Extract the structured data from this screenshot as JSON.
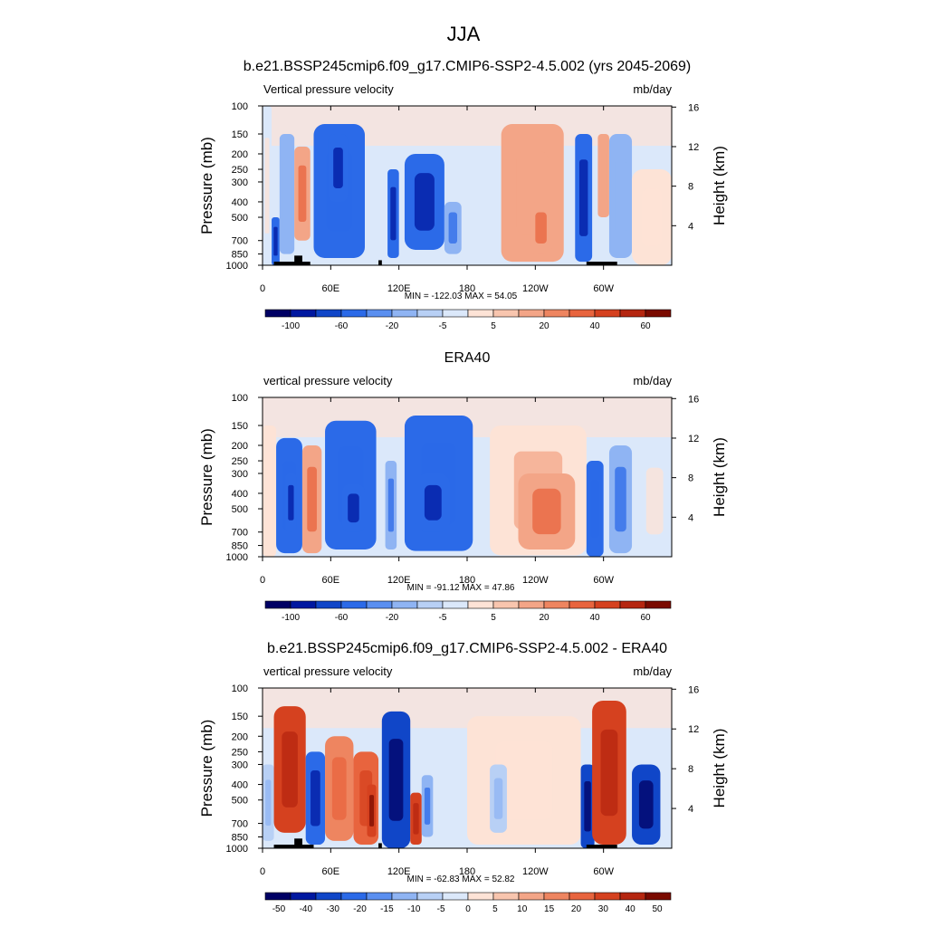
{
  "figure": {
    "title": "JJA"
  },
  "colors": {
    "panel_scale": [
      "#000064",
      "#0018a0",
      "#1046c8",
      "#2b6ae8",
      "#5a8ff0",
      "#8fb4f3",
      "#b8d0f5",
      "#dbe8fa",
      "#fde3d6",
      "#f8c5ae",
      "#f3a587",
      "#ee8560",
      "#e8643e",
      "#d5411f",
      "#b52610",
      "#7a0a00"
    ],
    "land": "#000000"
  },
  "chart_data": [
    {
      "type": "heatmap",
      "title": "b.e21.BSSP245cmip6.f09_g17.CMIP6-SSP2-4.5.002 (yrs 2045-2069)",
      "left_label": "Vertical pressure velocity",
      "right_label": "mb/day",
      "ylabel": "Pressure (mb)",
      "ylabel_right": "Height (km)",
      "x_ticks": [
        "0",
        "60E",
        "120E",
        "180",
        "120W",
        "60W"
      ],
      "y_ticks": [
        "100",
        "150",
        "200",
        "250",
        "300",
        "400",
        "500",
        "700",
        "850",
        "1000"
      ],
      "y_ticks_right": [
        "16",
        "12",
        "8",
        "4"
      ],
      "stats": "MIN = -122.03  MAX =  54.05",
      "colorbar_labels": [
        "-100",
        "-60",
        "-20",
        "-5",
        "5",
        "20",
        "40",
        "60"
      ],
      "ylim": [
        1000,
        100
      ],
      "xlim": [
        0,
        360
      ],
      "regions": [
        {
          "lon": [
            0,
            8
          ],
          "p": [
            100,
            1000
          ],
          "v": 4
        },
        {
          "lon": [
            8,
            15
          ],
          "p": [
            500,
            1000
          ],
          "v": -40
        },
        {
          "lon": [
            15,
            28
          ],
          "p": [
            150,
            850
          ],
          "v": -10
        },
        {
          "lon": [
            28,
            42
          ],
          "p": [
            180,
            700
          ],
          "v": 25
        },
        {
          "lon": [
            45,
            90
          ],
          "p": [
            130,
            900
          ],
          "v": -25
        },
        {
          "lon": [
            58,
            75
          ],
          "p": [
            150,
            400
          ],
          "v": -50
        },
        {
          "lon": [
            110,
            120
          ],
          "p": [
            250,
            900
          ],
          "v": -60
        },
        {
          "lon": [
            125,
            160
          ],
          "p": [
            200,
            800
          ],
          "v": -40
        },
        {
          "lon": [
            160,
            175
          ],
          "p": [
            400,
            850
          ],
          "v": -15
        },
        {
          "lon": [
            210,
            265
          ],
          "p": [
            130,
            950
          ],
          "v": 20
        },
        {
          "lon": [
            235,
            255
          ],
          "p": [
            400,
            850
          ],
          "v": 35
        },
        {
          "lon": [
            275,
            290
          ],
          "p": [
            150,
            950
          ],
          "v": -50
        },
        {
          "lon": [
            295,
            305
          ],
          "p": [
            150,
            500
          ],
          "v": 20
        },
        {
          "lon": [
            305,
            325
          ],
          "p": [
            150,
            900
          ],
          "v": -12
        },
        {
          "lon": [
            325,
            360
          ],
          "p": [
            250,
            1000
          ],
          "v": 8
        }
      ],
      "land": [
        {
          "lon": [
            10,
            42
          ],
          "p": [
            950,
            1000
          ]
        },
        {
          "lon": [
            28,
            35
          ],
          "p": [
            870,
            1000
          ]
        },
        {
          "lon": [
            102,
            105
          ],
          "p": [
            930,
            1000
          ]
        },
        {
          "lon": [
            285,
            312
          ],
          "p": [
            950,
            1000
          ]
        }
      ]
    },
    {
      "type": "heatmap",
      "title": "ERA40",
      "left_label": "vertical pressure velocity",
      "right_label": "mb/day",
      "ylabel": "Pressure (mb)",
      "ylabel_right": "Height (km)",
      "x_ticks": [
        "0",
        "60E",
        "120E",
        "180",
        "120W",
        "60W"
      ],
      "y_ticks": [
        "100",
        "150",
        "200",
        "250",
        "300",
        "400",
        "500",
        "700",
        "850",
        "1000"
      ],
      "y_ticks_right": [
        "16",
        "12",
        "8",
        "4"
      ],
      "stats": "MIN = -91.12  MAX =  47.86",
      "colorbar_labels": [
        "-100",
        "-60",
        "-20",
        "-5",
        "5",
        "20",
        "40",
        "60"
      ],
      "ylim": [
        1000,
        100
      ],
      "xlim": [
        0,
        360
      ],
      "regions": [
        {
          "lon": [
            0,
            12
          ],
          "p": [
            150,
            1000
          ],
          "v": 8
        },
        {
          "lon": [
            12,
            35
          ],
          "p": [
            180,
            950
          ],
          "v": -25
        },
        {
          "lon": [
            20,
            30
          ],
          "p": [
            300,
            700
          ],
          "v": -50
        },
        {
          "lon": [
            35,
            52
          ],
          "p": [
            200,
            950
          ],
          "v": 35
        },
        {
          "lon": [
            55,
            100
          ],
          "p": [
            140,
            900
          ],
          "v": -30
        },
        {
          "lon": [
            70,
            90
          ],
          "p": [
            350,
            700
          ],
          "v": -45
        },
        {
          "lon": [
            108,
            118
          ],
          "p": [
            250,
            900
          ],
          "v": -15
        },
        {
          "lon": [
            125,
            185
          ],
          "p": [
            130,
            920
          ],
          "v": -35
        },
        {
          "lon": [
            135,
            165
          ],
          "p": [
            300,
            700
          ],
          "v": -55
        },
        {
          "lon": [
            200,
            285
          ],
          "p": [
            150,
            980
          ],
          "v": 15
        },
        {
          "lon": [
            225,
            275
          ],
          "p": [
            300,
            900
          ],
          "v": 25
        },
        {
          "lon": [
            285,
            300
          ],
          "p": [
            250,
            1000
          ],
          "v": -35
        },
        {
          "lon": [
            305,
            325
          ],
          "p": [
            200,
            950
          ],
          "v": -15
        },
        {
          "lon": [
            330,
            360
          ],
          "p": [
            200,
            1000
          ],
          "v": 4
        }
      ],
      "land": []
    },
    {
      "type": "heatmap",
      "title": "b.e21.BSSP245cmip6.f09_g17.CMIP6-SSP2-4.5.002 - ERA40",
      "left_label": "vertical pressure velocity",
      "right_label": "mb/day",
      "ylabel": "Pressure (mb)",
      "ylabel_right": "Height (km)",
      "x_ticks": [
        "0",
        "60E",
        "120E",
        "180",
        "120W",
        "60W"
      ],
      "y_ticks": [
        "100",
        "150",
        "200",
        "250",
        "300",
        "400",
        "500",
        "700",
        "850",
        "1000"
      ],
      "y_ticks_right": [
        "16",
        "12",
        "8",
        "4"
      ],
      "stats": "MIN = -62.83  MAX =  52.82",
      "colorbar_labels": [
        "-50",
        "-40",
        "-30",
        "-20",
        "-15",
        "-10",
        "-5",
        "0",
        "5",
        "10",
        "15",
        "20",
        "30",
        "40",
        "50"
      ],
      "ylim": [
        1000,
        100
      ],
      "xlim": [
        0,
        360
      ],
      "regions": [
        {
          "lon": [
            0,
            10
          ],
          "p": [
            300,
            900
          ],
          "v": -8
        },
        {
          "lon": [
            10,
            38
          ],
          "p": [
            130,
            800
          ],
          "v": 30
        },
        {
          "lon": [
            38,
            55
          ],
          "p": [
            250,
            950
          ],
          "v": -30
        },
        {
          "lon": [
            55,
            80
          ],
          "p": [
            200,
            900
          ],
          "v": 15
        },
        {
          "lon": [
            80,
            102
          ],
          "p": [
            250,
            950
          ],
          "v": 20
        },
        {
          "lon": [
            92,
            100
          ],
          "p": [
            400,
            850
          ],
          "v": 35
        },
        {
          "lon": [
            105,
            130
          ],
          "p": [
            140,
            1000
          ],
          "v": -35
        },
        {
          "lon": [
            130,
            140
          ],
          "p": [
            450,
            950
          ],
          "v": 30
        },
        {
          "lon": [
            140,
            150
          ],
          "p": [
            350,
            850
          ],
          "v": -15
        },
        {
          "lon": [
            180,
            280
          ],
          "p": [
            150,
            950
          ],
          "v": 3
        },
        {
          "lon": [
            200,
            215
          ],
          "p": [
            300,
            800
          ],
          "v": -8
        },
        {
          "lon": [
            280,
            292
          ],
          "p": [
            300,
            1000
          ],
          "v": -40
        },
        {
          "lon": [
            290,
            320
          ],
          "p": [
            120,
            950
          ],
          "v": 30
        },
        {
          "lon": [
            325,
            350
          ],
          "p": [
            300,
            950
          ],
          "v": -35
        }
      ],
      "land": [
        {
          "lon": [
            10,
            45
          ],
          "p": [
            950,
            1000
          ]
        },
        {
          "lon": [
            28,
            35
          ],
          "p": [
            870,
            1000
          ]
        },
        {
          "lon": [
            102,
            105
          ],
          "p": [
            930,
            1000
          ]
        },
        {
          "lon": [
            285,
            312
          ],
          "p": [
            950,
            1000
          ]
        }
      ]
    }
  ]
}
